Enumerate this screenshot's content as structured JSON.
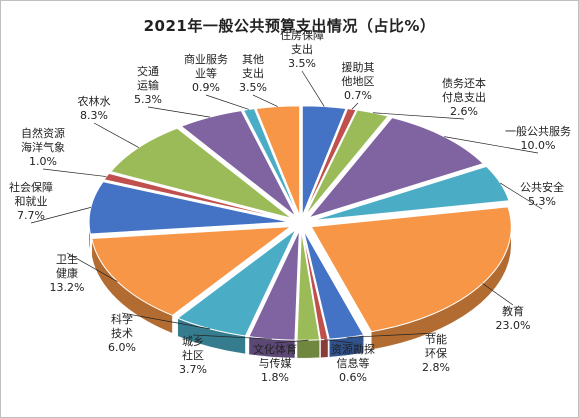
{
  "chart_data": {
    "type": "pie",
    "title": "2021年一般公共预算支出情况（占比%）",
    "unit": "%",
    "slices": [
      {
        "name": [
          "住房保障",
          "支出"
        ],
        "value_label": "3.5%",
        "value": 3.5,
        "color": "#4472c4"
      },
      {
        "name": [
          "援助其",
          "他地区"
        ],
        "value_label": "0.7%",
        "value": 0.7,
        "color": "#c0504d"
      },
      {
        "name": [
          "债务还本",
          "付息支出"
        ],
        "value_label": "2.6%",
        "value": 2.6,
        "color": "#9bbb59"
      },
      {
        "name": [
          "一般公共服务"
        ],
        "value_label": "10.0%",
        "value": 10.0,
        "color": "#8064a2"
      },
      {
        "name": [
          "公共安全"
        ],
        "value_label": "5.3%",
        "value": 5.3,
        "color": "#4bacc6"
      },
      {
        "name": [
          "教育"
        ],
        "value_label": "23.0%",
        "value": 23.0,
        "color": "#f79646"
      },
      {
        "name": [
          "节能",
          "环保"
        ],
        "value_label": "2.8%",
        "value": 2.8,
        "color": "#4472c4"
      },
      {
        "name": [
          "资源勘探",
          "信息等"
        ],
        "value_label": "0.6%",
        "value": 0.6,
        "color": "#c0504d"
      },
      {
        "name": [
          "文化体育",
          "与传媒"
        ],
        "value_label": "1.8%",
        "value": 1.8,
        "color": "#9bbb59"
      },
      {
        "name": [
          "城乡",
          "社区"
        ],
        "value_label": "3.7%",
        "value": 3.7,
        "color": "#8064a2"
      },
      {
        "name": [
          "科学",
          "技术"
        ],
        "value_label": "6.0%",
        "value": 6.0,
        "color": "#4bacc6"
      },
      {
        "name": [
          "卫生",
          "健康"
        ],
        "value_label": "13.2%",
        "value": 13.2,
        "color": "#f79646"
      },
      {
        "name": [
          "社会保障",
          "和就业"
        ],
        "value_label": "7.7%",
        "value": 7.7,
        "color": "#4472c4"
      },
      {
        "name": [
          "自然资源",
          "海洋气象"
        ],
        "value_label": "1.0%",
        "value": 1.0,
        "color": "#c0504d"
      },
      {
        "name": [
          "农林水"
        ],
        "value_label": "8.3%",
        "value": 8.3,
        "color": "#9bbb59"
      },
      {
        "name": [
          "交通",
          "运输"
        ],
        "value_label": "5.3%",
        "value": 5.3,
        "color": "#8064a2"
      },
      {
        "name": [
          "商业服务",
          "业等"
        ],
        "value_label": "0.9%",
        "value": 0.9,
        "color": "#4bacc6"
      },
      {
        "name": [
          "其他",
          "支出"
        ],
        "value_label": "3.5%",
        "value": 3.5,
        "color": "#f79646"
      }
    ]
  }
}
